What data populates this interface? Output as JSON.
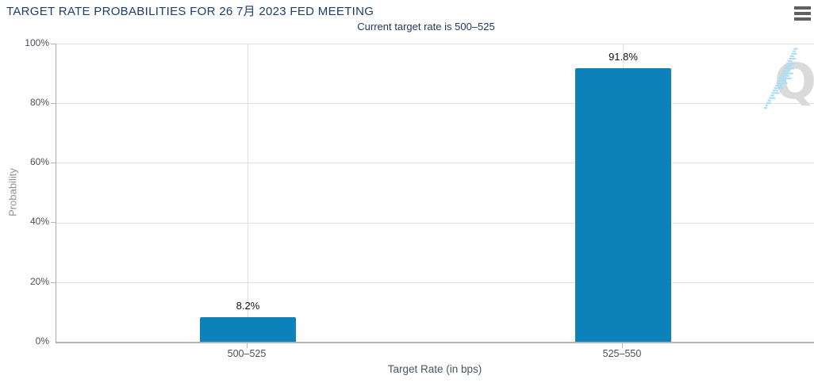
{
  "header": {
    "menu_icon": "hamburger-icon"
  },
  "watermark": {
    "letter": "Q"
  },
  "chart_data": {
    "type": "bar",
    "title": "TARGET RATE PROBABILITIES FOR 26 7月 2023 FED MEETING",
    "subtitle": "Current target rate is 500–525",
    "categories": [
      "500–525",
      "525–550"
    ],
    "values": [
      8.2,
      91.8
    ],
    "data_labels": [
      "8.2%",
      "91.8%"
    ],
    "xlabel": "Target Rate (in bps)",
    "ylabel": "Probability",
    "ylim": [
      0,
      100
    ],
    "ytick_step": 20,
    "yticks": [
      "0%",
      "20%",
      "40%",
      "60%",
      "80%",
      "100%"
    ],
    "grid": true,
    "legend": "none",
    "bar_color": "#0c81ba",
    "colors": {
      "title_navy": "#1f3e66",
      "subtitle_navy": "#203864",
      "gridline": "#e2e2e2",
      "axis_line": "#b4b4b4",
      "tick_label": "#49505a",
      "axis_title": "#465564",
      "ylabel_gray": "#909090",
      "data_label": "#111111",
      "watermark_gray": "#dadada",
      "watermark_blue": "#a9def5",
      "menu_icon_gray": "#606060"
    }
  }
}
